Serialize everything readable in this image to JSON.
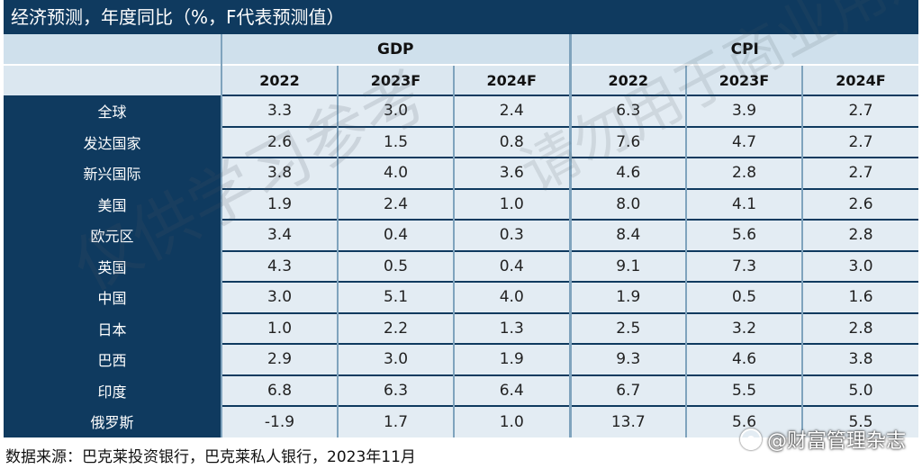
{
  "title": "经济预测，年度同比（%，F代表预测值）",
  "groups": [
    "GDP",
    "CPI"
  ],
  "years": [
    "2022",
    "2023F",
    "2024F",
    "2022",
    "2023F",
    "2024F"
  ],
  "rows": [
    {
      "label": "全球",
      "values": [
        "3.3",
        "3.0",
        "2.4",
        "6.3",
        "3.9",
        "2.7"
      ]
    },
    {
      "label": "发达国家",
      "values": [
        "2.6",
        "1.5",
        "0.8",
        "7.6",
        "4.7",
        "2.7"
      ]
    },
    {
      "label": "新兴国际",
      "values": [
        "3.8",
        "4.0",
        "3.6",
        "4.6",
        "2.8",
        "2.7"
      ]
    },
    {
      "label": "美国",
      "values": [
        "1.9",
        "2.4",
        "1.0",
        "8.0",
        "4.1",
        "2.6"
      ]
    },
    {
      "label": "欧元区",
      "values": [
        "3.4",
        "0.4",
        "0.3",
        "8.4",
        "5.6",
        "2.8"
      ]
    },
    {
      "label": "英国",
      "values": [
        "4.3",
        "0.5",
        "0.4",
        "9.1",
        "7.3",
        "3.0"
      ]
    },
    {
      "label": "中国",
      "values": [
        "3.0",
        "5.1",
        "4.0",
        "1.9",
        "0.5",
        "1.6"
      ]
    },
    {
      "label": "日本",
      "values": [
        "1.0",
        "2.2",
        "1.3",
        "2.5",
        "3.2",
        "2.8"
      ]
    },
    {
      "label": "巴西",
      "values": [
        "2.9",
        "3.0",
        "1.9",
        "9.3",
        "4.6",
        "3.8"
      ]
    },
    {
      "label": "印度",
      "values": [
        "6.8",
        "6.3",
        "6.4",
        "6.7",
        "5.5",
        "5.0"
      ]
    },
    {
      "label": "俄罗斯",
      "values": [
        "-1.9",
        "1.7",
        "1.0",
        "13.7",
        "5.6",
        "5.5"
      ]
    }
  ],
  "source": "数据来源：巴克莱投资银行，巴克莱私人银行，2023年11月",
  "watermark": "仅供学习参考",
  "watermark_2": "请勿用于商业用途",
  "brand": "@财富管理杂志"
}
